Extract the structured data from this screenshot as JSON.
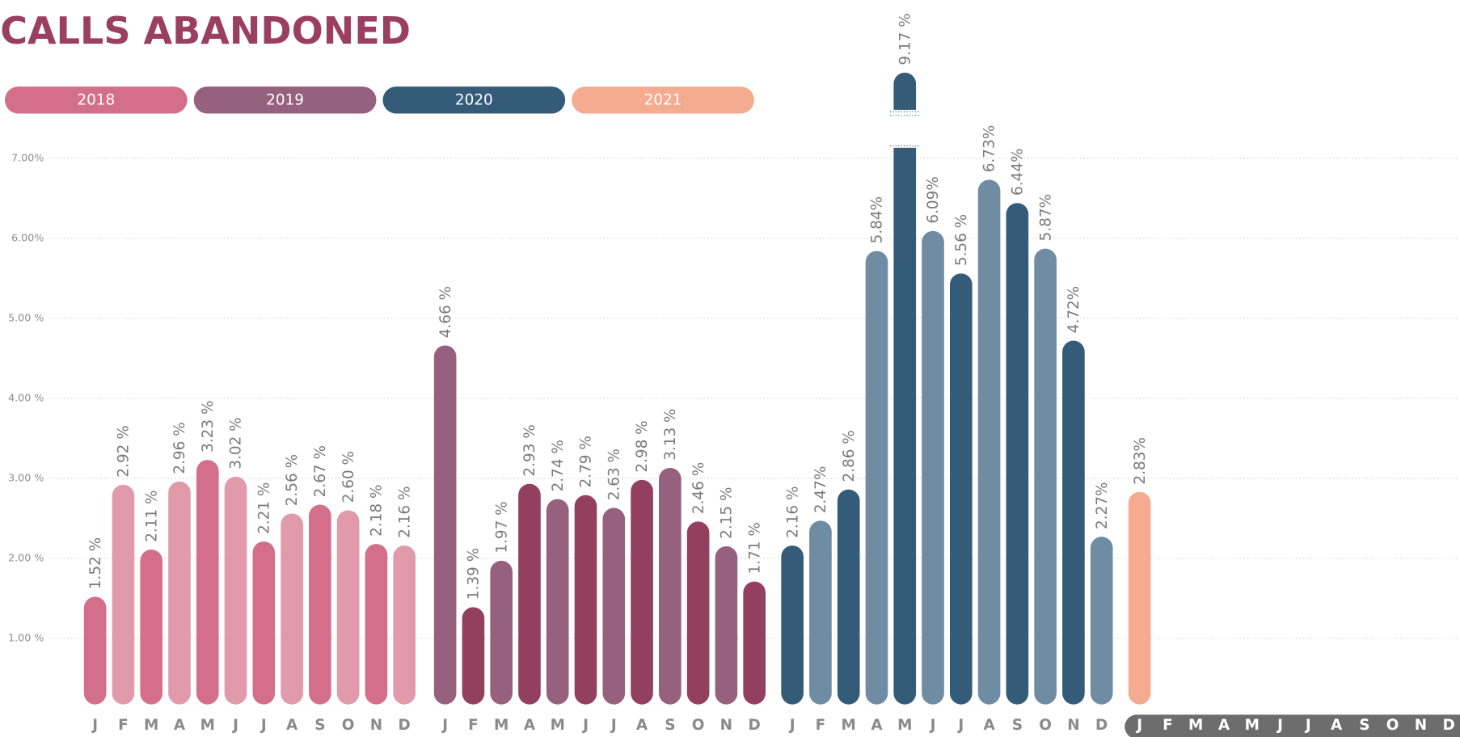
{
  "chart_data": {
    "type": "bar",
    "title": "CALLS ABANDONED",
    "categories": [
      "J",
      "F",
      "M",
      "A",
      "M",
      "J",
      "J",
      "A",
      "S",
      "O",
      "N",
      "D"
    ],
    "ylim": [
      0,
      7.2
    ],
    "yticks": [
      {
        "value": 1,
        "label": "1.00 %"
      },
      {
        "value": 2,
        "label": "2.00 %"
      },
      {
        "value": 3,
        "label": "3.00 %"
      },
      {
        "value": 4,
        "label": "4.00 %"
      },
      {
        "value": 5,
        "label": "5.00 %"
      },
      {
        "value": 6,
        "label": "6.00%"
      },
      {
        "value": 7,
        "label": "7.00%"
      }
    ],
    "grid": true,
    "series": [
      {
        "name": "2018",
        "color": "#d36f8a",
        "alt_color": "#e09aab",
        "values": [
          1.52,
          2.92,
          2.11,
          2.96,
          3.23,
          3.02,
          2.21,
          2.56,
          2.67,
          2.6,
          2.18,
          2.16
        ],
        "value_labels": [
          "1.52 %",
          "2.92 %",
          "2.11 %",
          "2.96 %",
          "3.23 %",
          "3.02 %",
          "2.21 %",
          "2.56 %",
          "2.67 %",
          "2.60 %",
          "2.18 %",
          "2.16 %"
        ]
      },
      {
        "name": "2019",
        "color": "#96617f",
        "alt_color": "#93405e",
        "values": [
          4.66,
          1.39,
          1.97,
          2.93,
          2.74,
          2.79,
          2.63,
          2.98,
          3.13,
          2.46,
          2.15,
          1.71
        ],
        "value_labels": [
          "4.66 %",
          "1.39 %",
          "1.97 %",
          "2.93 %",
          "2.74 %",
          "2.79 %",
          "2.63 %",
          "2.98 %",
          "3.13 %",
          "2.46 %",
          "2.15 %",
          "1.71 %"
        ]
      },
      {
        "name": "2020",
        "color": "#345b78",
        "alt_color": "#6f8ca2",
        "values": [
          2.16,
          2.47,
          2.86,
          5.84,
          9.17,
          6.09,
          5.56,
          6.73,
          6.44,
          5.87,
          4.72,
          2.27
        ],
        "value_labels": [
          "2.16 %",
          "2.47%",
          "2.86 %",
          "5.84%",
          "9.17 %",
          "6.09%",
          "5.56 %",
          "6.73%",
          "6.44%",
          "5.87%",
          "4.72%",
          "2.27%"
        ]
      },
      {
        "name": "2021",
        "color": "#f5ab90",
        "alt_color": "#f5ab90",
        "values": [
          2.83,
          null,
          null,
          null,
          null,
          null,
          null,
          null,
          null,
          null,
          null,
          null
        ],
        "value_labels": [
          "2.83%",
          null,
          null,
          null,
          null,
          null,
          null,
          null,
          null,
          null,
          null,
          null
        ]
      }
    ]
  }
}
